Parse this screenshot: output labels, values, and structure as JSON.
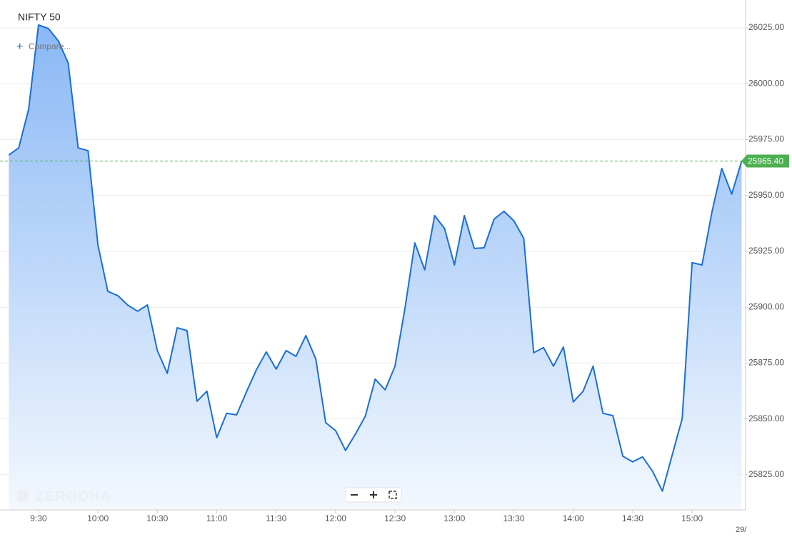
{
  "chart_data": {
    "type": "area",
    "title": "NIFTY 50",
    "compare_label": "Compare...",
    "watermark": "ZERODHA",
    "date_label": "29/",
    "x": [
      "9:15",
      "9:20",
      "9:25",
      "9:30",
      "9:35",
      "9:40",
      "9:45",
      "9:50",
      "9:55",
      "10:00",
      "10:05",
      "10:10",
      "10:15",
      "10:20",
      "10:25",
      "10:30",
      "10:35",
      "10:40",
      "10:45",
      "10:50",
      "10:55",
      "11:00",
      "11:05",
      "11:10",
      "11:15",
      "11:20",
      "11:25",
      "11:30",
      "11:35",
      "11:40",
      "11:45",
      "11:50",
      "11:55",
      "12:00",
      "12:05",
      "12:10",
      "12:15",
      "12:20",
      "12:25",
      "12:30",
      "12:35",
      "12:40",
      "12:45",
      "12:50",
      "12:55",
      "13:00",
      "13:05",
      "13:10",
      "13:15",
      "13:20",
      "13:25",
      "13:30",
      "13:35",
      "13:40",
      "13:45",
      "13:50",
      "13:55",
      "14:00",
      "14:05",
      "14:10",
      "14:15",
      "14:20",
      "14:25",
      "14:30",
      "14:35",
      "14:40",
      "14:45",
      "14:50",
      "14:55",
      "15:00",
      "15:05",
      "15:10",
      "15:15",
      "15:20",
      "15:25"
    ],
    "series": [
      {
        "name": "NIFTY 50",
        "color": "#1a6ed8",
        "values": [
          25968.1,
          25971.3,
          25988.6,
          26026.3,
          26024.7,
          26019.2,
          26009.3,
          25971.3,
          25970,
          25927.9,
          25907.1,
          25905.2,
          25901,
          25898.2,
          25901,
          25880.6,
          25870.4,
          25890.8,
          25889.5,
          25857.9,
          25862.4,
          25841.6,
          25852.5,
          25851.8,
          25862.1,
          25872,
          25880,
          25872.3,
          25880.6,
          25878,
          25887.3,
          25876.8,
          25848.3,
          25844.8,
          25835.9,
          25843.2,
          25851.2,
          25867.8,
          25863,
          25873.6,
          25899.4,
          25928.8,
          25916.7,
          25941,
          25935.2,
          25918.9,
          25941,
          25926.3,
          25926.6,
          25939.4,
          25942.9,
          25938.7,
          25930.8,
          25879.6,
          25881.9,
          25873.6,
          25882.2,
          25857.6,
          25862.4,
          25873.6,
          25852.5,
          25851.5,
          25833.3,
          25830.8,
          25833,
          25826.6,
          25817.7,
          25834,
          25850.2,
          25919.9,
          25918.9,
          25942.6,
          25962.1,
          25950.6,
          25965.4
        ]
      }
    ],
    "last_price": {
      "value": 25965.4,
      "label": "25965.40",
      "color": "#4caf50"
    },
    "xlim": [
      "9:12",
      "15:27"
    ],
    "xticks": [
      "9:30",
      "10:00",
      "10:30",
      "11:00",
      "11:30",
      "12:00",
      "12:30",
      "13:00",
      "13:30",
      "14:00",
      "14:30",
      "15:00"
    ],
    "ylim": [
      25809.3,
      26036.2
    ],
    "yticks": [
      {
        "value": 25825,
        "label": "25825.00"
      },
      {
        "value": 25850,
        "label": "25850.00"
      },
      {
        "value": 25875,
        "label": "25875.00"
      },
      {
        "value": 25900,
        "label": "25900.00"
      },
      {
        "value": 25925,
        "label": "25925.00"
      },
      {
        "value": 25950,
        "label": "25950.00"
      },
      {
        "value": 25975,
        "label": "25975.00"
      },
      {
        "value": 26000,
        "label": "26000.00"
      },
      {
        "value": 26025,
        "label": "26025.00"
      }
    ],
    "grid": true
  }
}
